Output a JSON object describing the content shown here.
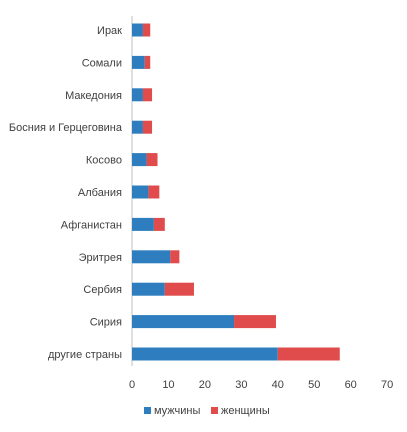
{
  "chart_data": {
    "type": "bar",
    "orientation": "horizontal",
    "stacked": true,
    "categories": [
      "Ирак",
      "Сомали",
      "Македония",
      "Босния и Герцеговина",
      "Косово",
      "Албания",
      "Афганистан",
      "Эритрея",
      "Сербия",
      "Сирия",
      "другие страны"
    ],
    "series": [
      {
        "name": "мужчины",
        "color": "#2e7ebf",
        "values": [
          3,
          3.5,
          3,
          3,
          4,
          4.5,
          6,
          10.5,
          9,
          28,
          40
        ]
      },
      {
        "name": "женщины",
        "color": "#e04b4b",
        "values": [
          2,
          1.5,
          2.5,
          2.5,
          3,
          3,
          3,
          2.5,
          8,
          11.5,
          17
        ]
      }
    ],
    "x_ticks": [
      "0",
      "10",
      "20",
      "30",
      "40",
      "50",
      "60",
      "70"
    ],
    "xlim": [
      0,
      70
    ],
    "grid": false,
    "legend_position": "bottom",
    "title": "",
    "xlabel": "",
    "ylabel": ""
  }
}
